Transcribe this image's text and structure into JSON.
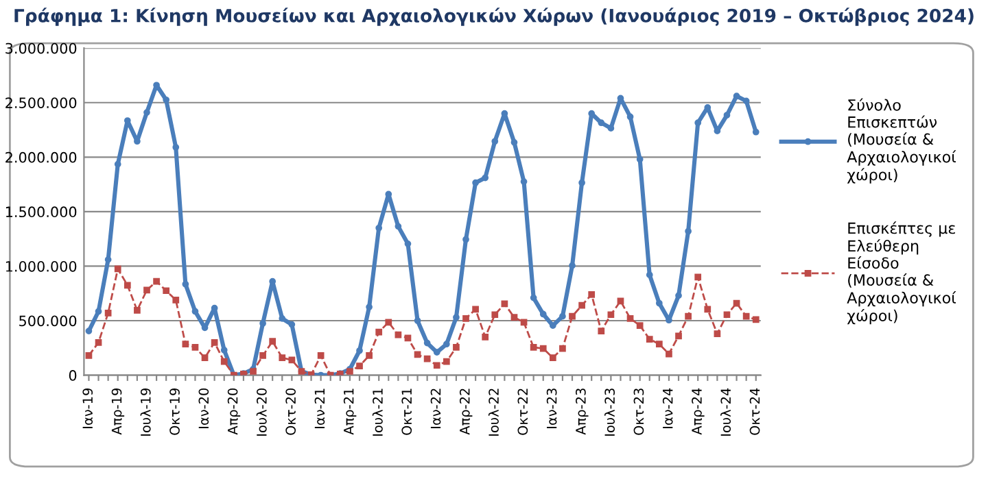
{
  "chart_data": {
    "type": "line",
    "title": "Γράφημα 1: Κίνηση Μουσείων και Αρχαιολογικών Χώρων (Ιανουάριος 2019 – Οκτώβριος 2024)",
    "categories": [
      "Ιαν-19",
      null,
      null,
      "Απρ-19",
      null,
      null,
      "Ιουλ-19",
      null,
      null,
      "Οκτ-19",
      null,
      null,
      "Ιαν-20",
      null,
      null,
      "Απρ-20",
      null,
      null,
      "Ιουλ-20",
      null,
      null,
      "Οκτ-20",
      null,
      null,
      "Ιαν-21",
      null,
      null,
      "Απρ-21",
      null,
      null,
      "Ιουλ-21",
      null,
      null,
      "Οκτ-21",
      null,
      null,
      "Ιαν-22",
      null,
      null,
      "Απρ-22",
      null,
      null,
      "Ιουλ-22",
      null,
      null,
      "Οκτ-22",
      null,
      null,
      "Ιαν-23",
      null,
      null,
      "Απρ-23",
      null,
      null,
      "Ιουλ-23",
      null,
      null,
      "Οκτ-23",
      null,
      null,
      "Ιαν-24",
      null,
      null,
      "Απρ-24",
      null,
      null,
      "Ιουλ-24",
      null,
      null,
      "Οκτ-24"
    ],
    "series": [
      {
        "name": "Σύνολο Επισκεπτών (Μουσεία & Αρχαιολογικοί χώροι)",
        "color": "#4a7ebb",
        "marker": "circle",
        "line_style": "solid",
        "values": [
          405000,
          585000,
          1060000,
          1935000,
          2335000,
          2145000,
          2410000,
          2660000,
          2525000,
          2090000,
          835000,
          585000,
          435000,
          615000,
          230000,
          0,
          15000,
          55000,
          475000,
          860000,
          520000,
          465000,
          35000,
          5000,
          0,
          0,
          15000,
          55000,
          225000,
          625000,
          1350000,
          1660000,
          1365000,
          1205000,
          500000,
          295000,
          210000,
          285000,
          530000,
          1245000,
          1765000,
          1810000,
          2145000,
          2400000,
          2135000,
          1775000,
          710000,
          560000,
          455000,
          540000,
          1005000,
          1765000,
          2400000,
          2315000,
          2265000,
          2540000,
          2370000,
          1980000,
          920000,
          660000,
          505000,
          730000,
          1320000,
          2315000,
          2455000,
          2240000,
          2385000,
          2560000,
          2515000,
          2230000
        ]
      },
      {
        "name": "Επισκέπτες με Ελεύθερη Είσοδο (Μουσεία & Αρχαιολογικοί χώροι)",
        "color": "#be4b48",
        "marker": "square",
        "line_style": "dashed",
        "values": [
          180000,
          300000,
          570000,
          975000,
          825000,
          595000,
          780000,
          860000,
          775000,
          690000,
          285000,
          255000,
          160000,
          300000,
          125000,
          0,
          10000,
          35000,
          180000,
          310000,
          160000,
          140000,
          35000,
          5000,
          180000,
          0,
          10000,
          35000,
          85000,
          180000,
          395000,
          485000,
          370000,
          340000,
          190000,
          150000,
          90000,
          125000,
          255000,
          520000,
          605000,
          350000,
          555000,
          655000,
          530000,
          485000,
          255000,
          245000,
          160000,
          245000,
          540000,
          640000,
          740000,
          405000,
          555000,
          680000,
          520000,
          455000,
          330000,
          285000,
          195000,
          360000,
          540000,
          900000,
          605000,
          380000,
          555000,
          660000,
          540000,
          510000
        ]
      }
    ],
    "ylim": [
      0,
      3000000
    ],
    "yticks": [
      0,
      {
        "value": 500000,
        "label": "500.000"
      },
      {
        "value": 1000000,
        "label": "1.000.000"
      },
      {
        "value": 1500000,
        "label": "1.500.000"
      },
      {
        "value": 2000000,
        "label": "2.000.000"
      },
      {
        "value": 2500000,
        "label": "2.500.000"
      },
      {
        "value": 3000000,
        "label": "3.000.000"
      }
    ],
    "grid": "y",
    "legend": "right"
  }
}
